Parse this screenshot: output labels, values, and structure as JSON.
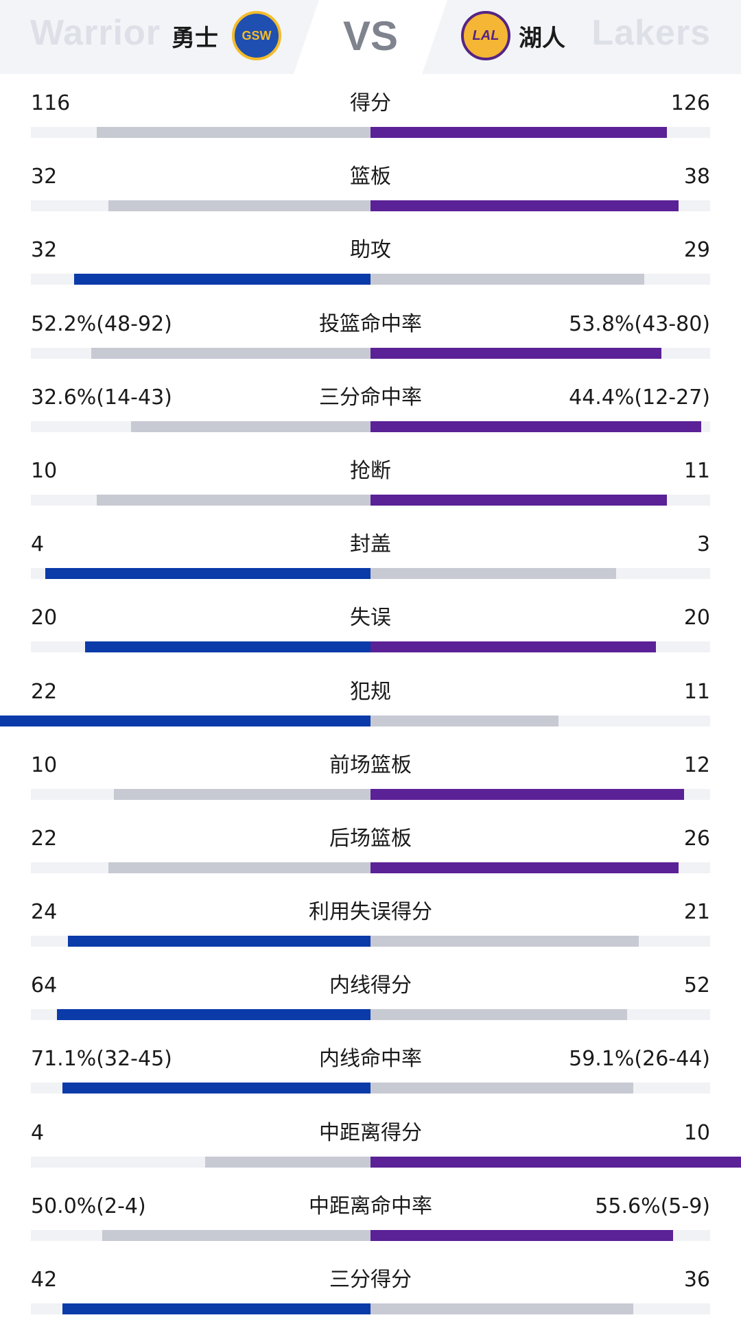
{
  "header": {
    "vs": "VS",
    "left_team": {
      "ghost": "Warrior",
      "name": "勇士",
      "logo_text": "GSW",
      "logo_icon": "warriors-logo"
    },
    "right_team": {
      "ghost": "Lakers",
      "name": "湖人",
      "logo_text": "LAL",
      "logo_icon": "lakers-logo"
    }
  },
  "colors": {
    "warriors_lead": "#0b3aa9",
    "lakers_lead": "#5b2196",
    "trailing": "#c7cad3",
    "track": "#f1f2f5"
  },
  "stats": [
    {
      "label": "得分",
      "left": "116",
      "right": "126",
      "left_frac": 0.48,
      "right_frac": 0.52,
      "lead": "right"
    },
    {
      "label": "篮板",
      "left": "32",
      "right": "38",
      "left_frac": 0.46,
      "right_frac": 0.54,
      "lead": "right"
    },
    {
      "label": "助攻",
      "left": "32",
      "right": "29",
      "left_frac": 0.52,
      "right_frac": 0.48,
      "lead": "left"
    },
    {
      "label": "投篮命中率",
      "left": "52.2%(48-92)",
      "right": "53.8%(43-80)",
      "left_frac": 0.49,
      "right_frac": 0.51,
      "lead": "right"
    },
    {
      "label": "三分命中率",
      "left": "32.6%(14-43)",
      "right": "44.4%(12-27)",
      "left_frac": 0.42,
      "right_frac": 0.58,
      "lead": "right"
    },
    {
      "label": "抢断",
      "left": "10",
      "right": "11",
      "left_frac": 0.48,
      "right_frac": 0.52,
      "lead": "right"
    },
    {
      "label": "封盖",
      "left": "4",
      "right": "3",
      "left_frac": 0.57,
      "right_frac": 0.43,
      "lead": "left"
    },
    {
      "label": "失误",
      "left": "20",
      "right": "20",
      "left_frac": 0.5,
      "right_frac": 0.5,
      "lead": "both"
    },
    {
      "label": "犯规",
      "left": "22",
      "right": "11",
      "left_frac": 0.67,
      "right_frac": 0.33,
      "lead": "left"
    },
    {
      "label": "前场篮板",
      "left": "10",
      "right": "12",
      "left_frac": 0.45,
      "right_frac": 0.55,
      "lead": "right"
    },
    {
      "label": "后场篮板",
      "left": "22",
      "right": "26",
      "left_frac": 0.46,
      "right_frac": 0.54,
      "lead": "right"
    },
    {
      "label": "利用失误得分",
      "left": "24",
      "right": "21",
      "left_frac": 0.53,
      "right_frac": 0.47,
      "lead": "left"
    },
    {
      "label": "内线得分",
      "left": "64",
      "right": "52",
      "left_frac": 0.55,
      "right_frac": 0.45,
      "lead": "left"
    },
    {
      "label": "内线命中率",
      "left": "71.1%(32-45)",
      "right": "59.1%(26-44)",
      "left_frac": 0.54,
      "right_frac": 0.46,
      "lead": "left"
    },
    {
      "label": "中距离得分",
      "left": "4",
      "right": "10",
      "left_frac": 0.29,
      "right_frac": 0.71,
      "lead": "right"
    },
    {
      "label": "中距离命中率",
      "left": "50.0%(2-4)",
      "right": "55.6%(5-9)",
      "left_frac": 0.47,
      "right_frac": 0.53,
      "lead": "right"
    },
    {
      "label": "三分得分",
      "left": "42",
      "right": "36",
      "left_frac": 0.54,
      "right_frac": 0.46,
      "lead": "left"
    }
  ]
}
